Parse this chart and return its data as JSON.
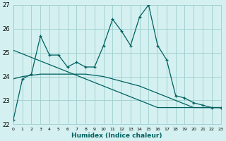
{
  "x": [
    0,
    1,
    2,
    3,
    4,
    5,
    6,
    7,
    8,
    9,
    10,
    11,
    12,
    13,
    14,
    15,
    16,
    17,
    18,
    19,
    20,
    21,
    22,
    23
  ],
  "y_main": [
    22.2,
    23.9,
    24.1,
    25.7,
    24.9,
    24.9,
    24.4,
    24.6,
    24.4,
    24.4,
    25.3,
    26.4,
    25.9,
    25.3,
    26.5,
    27.0,
    25.3,
    24.7,
    23.2,
    23.1,
    22.9,
    22.8,
    22.7,
    22.7
  ],
  "y_trend1": [
    25.1,
    24.95,
    24.8,
    24.65,
    24.5,
    24.35,
    24.2,
    24.05,
    23.9,
    23.75,
    23.6,
    23.45,
    23.3,
    23.15,
    23.0,
    22.85,
    22.7,
    22.7,
    22.7,
    22.7,
    22.7,
    22.7,
    22.7,
    22.7
  ],
  "y_trend2": [
    23.9,
    24.0,
    24.05,
    24.1,
    24.1,
    24.1,
    24.1,
    24.1,
    24.1,
    24.05,
    24.0,
    23.9,
    23.8,
    23.7,
    23.6,
    23.45,
    23.3,
    23.15,
    23.0,
    22.85,
    22.7,
    22.7,
    22.7,
    22.7
  ],
  "color": "#006060",
  "bg_color": "#d4f0f0",
  "grid_color": "#9ecece",
  "xlabel": "Humidex (Indice chaleur)",
  "ylim": [
    22,
    27
  ],
  "xlim": [
    0,
    23
  ],
  "yticks": [
    22,
    23,
    24,
    25,
    26,
    27
  ],
  "xticks": [
    0,
    1,
    2,
    3,
    4,
    5,
    6,
    7,
    8,
    9,
    10,
    11,
    12,
    13,
    14,
    15,
    16,
    17,
    18,
    19,
    20,
    21,
    22,
    23
  ]
}
